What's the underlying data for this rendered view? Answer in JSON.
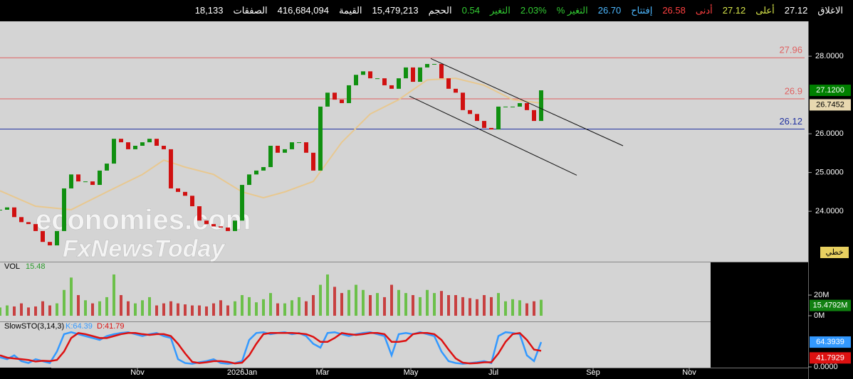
{
  "header": {
    "fields": [
      {
        "label": "الاغلاق",
        "value": "27.12",
        "label_color": "#ffffff",
        "value_color": "#ffffff"
      },
      {
        "label": "أعلى",
        "value": "27.12",
        "label_color": "#d8e64a",
        "value_color": "#d8e64a"
      },
      {
        "label": "أدنى",
        "value": "26.58",
        "label_color": "#ff4040",
        "value_color": "#ff4040"
      },
      {
        "label": "إفتتاح",
        "value": "26.70",
        "label_color": "#4db8ff",
        "value_color": "#4db8ff"
      },
      {
        "label": "التغير %",
        "value": "2.03%",
        "label_color": "#33cc33",
        "value_color": "#33cc33"
      },
      {
        "label": "التغير",
        "value": "0.54",
        "label_color": "#33cc33",
        "value_color": "#33cc33"
      },
      {
        "label": "الحجم",
        "value": "15,479,213",
        "label_color": "#ffffff",
        "value_color": "#ffffff"
      },
      {
        "label": "القيمة",
        "value": "416,684,094",
        "label_color": "#ffffff",
        "value_color": "#ffffff"
      },
      {
        "label": "الصفقات",
        "value": "18,133",
        "label_color": "#ffffff",
        "value_color": "#ffffff"
      }
    ]
  },
  "watermark": [
    "economies.com",
    "FxNewsToday"
  ],
  "chart_data": [
    {
      "type": "candlestick",
      "color_up": "#109010",
      "color_down": "#d01010",
      "values": [
        24.04,
        24.1,
        23.85,
        23.72,
        23.67,
        23.49,
        23.21,
        23.12,
        23.49,
        24.59,
        24.95,
        24.77,
        24.77,
        24.68,
        25.05,
        25.23,
        25.87,
        25.78,
        25.6,
        25.69,
        25.78,
        25.87,
        25.69,
        25.6,
        24.59,
        24.5,
        24.4,
        24.13,
        23.76,
        23.67,
        23.61,
        23.58,
        23.49,
        23.76,
        24.68,
        24.95,
        25.05,
        25.14,
        25.69,
        25.51,
        25.6,
        25.78,
        25.78,
        25.51,
        25.05,
        26.7,
        27.06,
        26.88,
        26.79,
        27.25,
        27.52,
        27.61,
        27.43,
        27.43,
        27.25,
        27.16,
        27.43,
        27.71,
        27.34,
        27.71,
        27.8,
        27.8,
        27.43,
        27.16,
        27.06,
        26.61,
        26.51,
        26.33,
        26.15,
        26.11,
        26.7,
        26.7,
        26.7,
        26.79,
        26.61,
        26.33,
        27.12
      ],
      "ma": {
        "color": "#e8c890",
        "x": [
          0,
          5,
          10,
          15,
          20,
          23,
          26,
          30,
          34,
          37,
          40,
          44,
          48,
          52,
          56,
          60,
          64,
          68,
          72,
          76
        ],
        "values": [
          24.53,
          24.13,
          24.04,
          24.5,
          24.95,
          25.32,
          25.14,
          24.95,
          24.5,
          24.35,
          24.5,
          24.77,
          25.78,
          26.51,
          26.88,
          27.39,
          27.43,
          27.25,
          26.88,
          26.79
        ]
      },
      "levels": [
        {
          "value": 27.96,
          "color": "#e06060"
        },
        {
          "value": 26.9,
          "color": "#e06060"
        },
        {
          "value": 26.12,
          "color": "#2030a0"
        }
      ],
      "trendlines": [
        {
          "x": [
            60.5,
            87.5
          ],
          "y": [
            27.94,
            25.69
          ]
        },
        {
          "x": [
            57.5,
            81
          ],
          "y": [
            26.97,
            24.93
          ]
        }
      ],
      "last_labels": [
        {
          "value": 27.12,
          "label": "27.1200",
          "color": "#008000"
        },
        {
          "value": 26.7452,
          "label": "26.7452",
          "color": "#e8d8b0"
        }
      ],
      "mode_label": "خطي",
      "xlim": [
        0,
        113.5
      ],
      "ylim": [
        22.7,
        28.9
      ],
      "yticks": [
        {
          "value": 28,
          "label": "28.0000"
        },
        {
          "value": 26,
          "label": "26.0000"
        },
        {
          "value": 25,
          "label": "25.0000"
        },
        {
          "value": 24,
          "label": "24.0000"
        }
      ]
    },
    {
      "type": "bar",
      "title": "VOL",
      "value_label": "15.48",
      "values": [
        8,
        10,
        9,
        12,
        8,
        9,
        14,
        10,
        12,
        25,
        37,
        20,
        15,
        12,
        14,
        18,
        40,
        20,
        14,
        12,
        15,
        18,
        10,
        12,
        14,
        12,
        11,
        10,
        10,
        9,
        12,
        15,
        10,
        14,
        20,
        18,
        13,
        16,
        22,
        12,
        12,
        15,
        18,
        14,
        20,
        30,
        40,
        28,
        22,
        25,
        30,
        25,
        20,
        22,
        18,
        30,
        25,
        22,
        20,
        18,
        25,
        22,
        24,
        20,
        20,
        18,
        17,
        16,
        20,
        18,
        22,
        14,
        16,
        15,
        12,
        14,
        15.48
      ],
      "last_label": {
        "value": 15.4792,
        "label": "15.4792M"
      },
      "xlim": [
        0,
        113.5
      ],
      "ylim": [
        -5.5,
        52.4
      ],
      "yticks": [
        {
          "value": 20,
          "label": "20M"
        },
        {
          "value": 0,
          "label": "0M"
        }
      ]
    },
    {
      "type": "line",
      "title": "SlowSTO(3,14,3)",
      "series": [
        {
          "name": "K:64.39",
          "color": "#3399ff",
          "values": [
            25,
            20,
            30,
            15,
            10,
            20,
            15,
            10,
            40,
            85,
            90,
            85,
            80,
            75,
            70,
            80,
            85,
            88,
            90,
            85,
            80,
            85,
            88,
            80,
            75,
            20,
            10,
            8,
            12,
            15,
            20,
            10,
            8,
            10,
            15,
            70,
            88,
            90,
            85,
            88,
            90,
            85,
            88,
            80,
            60,
            50,
            88,
            90,
            85,
            80,
            85,
            88,
            90,
            85,
            80,
            30,
            85,
            88,
            85,
            90,
            85,
            80,
            40,
            15,
            10,
            8,
            10,
            12,
            15,
            10,
            80,
            90,
            88,
            85,
            30,
            15,
            64.39
          ]
        },
        {
          "name": "D:41.79",
          "color": "#dd1111",
          "values": [
            30,
            24,
            22,
            20,
            18,
            14,
            16,
            15,
            18,
            40,
            75,
            88,
            85,
            80,
            75,
            75,
            80,
            85,
            88,
            88,
            85,
            83,
            85,
            85,
            80,
            60,
            35,
            13,
            10,
            12,
            15,
            15,
            13,
            9,
            11,
            30,
            60,
            85,
            88,
            88,
            88,
            88,
            87,
            85,
            78,
            65,
            65,
            75,
            88,
            85,
            83,
            85,
            88,
            88,
            85,
            65,
            65,
            68,
            85,
            88,
            88,
            85,
            70,
            45,
            22,
            11,
            9,
            10,
            12,
            12,
            35,
            65,
            85,
            88,
            70,
            45,
            41.79
          ]
        }
      ],
      "last_labels": [
        {
          "value": 64.3939,
          "label": "64.3939",
          "color": "#3399ff"
        },
        {
          "value": 41.7929,
          "label": "41.7929",
          "color": "#dd1111"
        }
      ],
      "xlim": [
        0,
        113.5
      ],
      "ylim": [
        0,
        107
      ],
      "yticks": [
        {
          "value": 0,
          "label": "0.0000"
        }
      ],
      "xticks": [
        {
          "value": 19.3,
          "label": "Nov"
        },
        {
          "value": 34,
          "label": "2026Jan"
        },
        {
          "value": 45.3,
          "label": "Mar"
        },
        {
          "value": 57.7,
          "label": "May"
        },
        {
          "value": 69.3,
          "label": "Jul"
        },
        {
          "value": 83.3,
          "label": "Sep"
        },
        {
          "value": 96.8,
          "label": "Nov"
        }
      ]
    }
  ]
}
